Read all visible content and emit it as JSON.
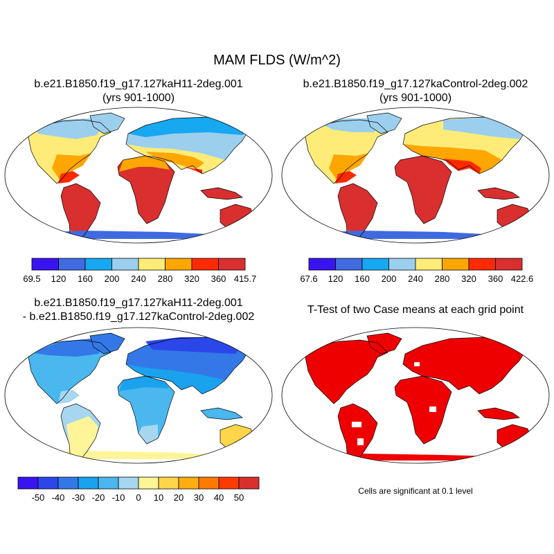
{
  "figure": {
    "title": "MAM FLDS (W/m^2)"
  },
  "panels": [
    {
      "title_line1": "b.e21.B1850.f19_g17.127kaH11-2deg.001",
      "title_line2": "(yrs 901-1000)"
    },
    {
      "title_line1": "b.e21.B1850.f19_g17.127kaControl-2deg.002",
      "title_line2": "(yrs 901-1000)"
    },
    {
      "title_line1": "b.e21.B1850.f19_g17.127kaH11-2deg.001",
      "title_line2": "- b.e21.B1850.f19_g17.127kaControl-2deg.002"
    },
    {
      "title_line1": "T-Test of two Case means at each grid point",
      "title_line2": ""
    }
  ],
  "colorbars": {
    "case1": {
      "colors": [
        "#3a14f0",
        "#3f6ae0",
        "#16a8f0",
        "#9ccfee",
        "#ffec78",
        "#ffa600",
        "#fd2a00",
        "#d92f2f"
      ],
      "labels": [
        "69.5",
        "120",
        "160",
        "200",
        "240",
        "280",
        "320",
        "360",
        "415.7"
      ]
    },
    "case2": {
      "colors": [
        "#3a14f0",
        "#3f6ae0",
        "#16a8f0",
        "#9ccfee",
        "#ffec78",
        "#ffa600",
        "#fd2a00",
        "#d92f2f"
      ],
      "labels": [
        "67.6",
        "120",
        "160",
        "200",
        "240",
        "280",
        "320",
        "360",
        "422.6"
      ]
    },
    "diff": {
      "colors": [
        "#3a14f0",
        "#2b47ea",
        "#3378e6",
        "#1aa2ee",
        "#4ab7ef",
        "#a6d6f0",
        "#fff598",
        "#ffd54a",
        "#ffad10",
        "#ff7a00",
        "#fd3a00",
        "#d92f2f"
      ],
      "labels": [
        "-50",
        "-40",
        "-30",
        "-20",
        "-10",
        "0",
        "10",
        "20",
        "30",
        "40",
        "50"
      ]
    }
  },
  "significance_note": "Cells are significant at 0.1 level"
}
